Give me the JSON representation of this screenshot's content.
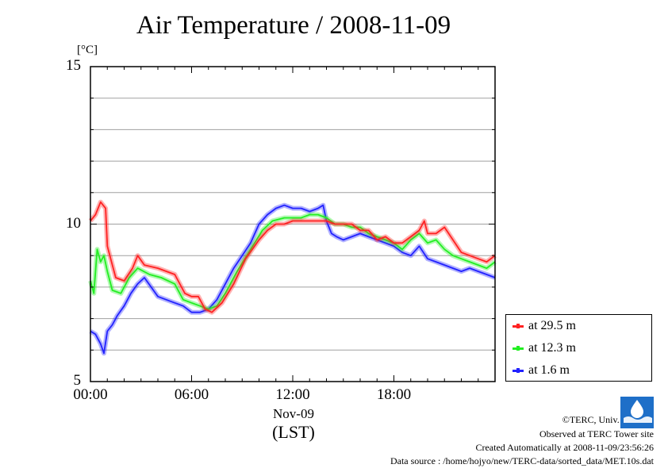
{
  "chart_data": {
    "type": "line",
    "title": "Air Temperature / 2008-11-09",
    "unit": "[°C]",
    "ylim": [
      5,
      15
    ],
    "yticks": [
      "5",
      "10",
      "15"
    ],
    "xlim": [
      0,
      24
    ],
    "xticks": [
      {
        "hour": 0,
        "label": "00:00"
      },
      {
        "hour": 6,
        "label": "06:00"
      },
      {
        "hour": 12,
        "label": "12:00"
      },
      {
        "hour": 18,
        "label": "18:00"
      }
    ],
    "x_date_label": "Nov-09",
    "x_tz_label": "(LST)",
    "grid": "horizontal",
    "legend_position": "bottom-right, outside plot",
    "series": [
      {
        "name": "at 29.5 m",
        "color": "#ff2222",
        "points": [
          [
            0.0,
            10.1
          ],
          [
            0.3,
            10.3
          ],
          [
            0.6,
            10.7
          ],
          [
            0.9,
            10.5
          ],
          [
            1.0,
            9.3
          ],
          [
            1.2,
            8.9
          ],
          [
            1.5,
            8.3
          ],
          [
            2.0,
            8.2
          ],
          [
            2.5,
            8.6
          ],
          [
            2.8,
            9.0
          ],
          [
            3.2,
            8.7
          ],
          [
            4.0,
            8.6
          ],
          [
            5.0,
            8.4
          ],
          [
            5.6,
            7.8
          ],
          [
            6.0,
            7.7
          ],
          [
            6.4,
            7.7
          ],
          [
            6.8,
            7.3
          ],
          [
            7.2,
            7.2
          ],
          [
            7.8,
            7.5
          ],
          [
            8.5,
            8.1
          ],
          [
            9.2,
            8.9
          ],
          [
            10.0,
            9.5
          ],
          [
            10.5,
            9.8
          ],
          [
            11.0,
            10.0
          ],
          [
            11.5,
            10.0
          ],
          [
            12.0,
            10.1
          ],
          [
            12.5,
            10.1
          ],
          [
            13.0,
            10.1
          ],
          [
            13.5,
            10.1
          ],
          [
            14.0,
            10.1
          ],
          [
            14.5,
            10.0
          ],
          [
            15.0,
            10.0
          ],
          [
            15.5,
            10.0
          ],
          [
            16.0,
            9.8
          ],
          [
            16.5,
            9.8
          ],
          [
            17.0,
            9.5
          ],
          [
            17.5,
            9.6
          ],
          [
            18.0,
            9.4
          ],
          [
            18.5,
            9.4
          ],
          [
            19.0,
            9.6
          ],
          [
            19.5,
            9.8
          ],
          [
            19.8,
            10.1
          ],
          [
            20.0,
            9.7
          ],
          [
            20.5,
            9.7
          ],
          [
            21.0,
            9.9
          ],
          [
            21.5,
            9.5
          ],
          [
            22.0,
            9.1
          ],
          [
            22.5,
            9.0
          ],
          [
            23.0,
            8.9
          ],
          [
            23.5,
            8.8
          ],
          [
            24.0,
            9.0
          ]
        ]
      },
      {
        "name": "at 12.3 m",
        "color": "#22ee22",
        "points": [
          [
            0.0,
            8.2
          ],
          [
            0.2,
            7.8
          ],
          [
            0.4,
            9.2
          ],
          [
            0.6,
            8.8
          ],
          [
            0.8,
            9.0
          ],
          [
            1.0,
            8.5
          ],
          [
            1.3,
            7.9
          ],
          [
            1.8,
            7.8
          ],
          [
            2.3,
            8.3
          ],
          [
            2.8,
            8.6
          ],
          [
            3.5,
            8.4
          ],
          [
            4.2,
            8.3
          ],
          [
            5.0,
            8.1
          ],
          [
            5.5,
            7.6
          ],
          [
            6.0,
            7.5
          ],
          [
            6.5,
            7.4
          ],
          [
            7.0,
            7.3
          ],
          [
            7.5,
            7.4
          ],
          [
            8.0,
            7.8
          ],
          [
            8.7,
            8.5
          ],
          [
            9.5,
            9.2
          ],
          [
            10.2,
            9.8
          ],
          [
            10.8,
            10.1
          ],
          [
            11.5,
            10.2
          ],
          [
            12.0,
            10.2
          ],
          [
            12.5,
            10.2
          ],
          [
            13.0,
            10.3
          ],
          [
            13.5,
            10.3
          ],
          [
            14.0,
            10.2
          ],
          [
            14.5,
            10.0
          ],
          [
            15.0,
            10.0
          ],
          [
            15.5,
            9.9
          ],
          [
            16.0,
            9.9
          ],
          [
            16.5,
            9.7
          ],
          [
            17.0,
            9.6
          ],
          [
            17.5,
            9.5
          ],
          [
            18.0,
            9.4
          ],
          [
            18.5,
            9.2
          ],
          [
            19.0,
            9.5
          ],
          [
            19.5,
            9.7
          ],
          [
            20.0,
            9.4
          ],
          [
            20.5,
            9.5
          ],
          [
            21.0,
            9.2
          ],
          [
            21.5,
            9.0
          ],
          [
            22.0,
            8.9
          ],
          [
            22.5,
            8.8
          ],
          [
            23.0,
            8.7
          ],
          [
            23.5,
            8.6
          ],
          [
            24.0,
            8.8
          ]
        ]
      },
      {
        "name": "at 1.6 m",
        "color": "#2222ff",
        "points": [
          [
            0.0,
            6.6
          ],
          [
            0.3,
            6.5
          ],
          [
            0.6,
            6.2
          ],
          [
            0.8,
            5.9
          ],
          [
            1.0,
            6.6
          ],
          [
            1.3,
            6.8
          ],
          [
            1.6,
            7.1
          ],
          [
            2.0,
            7.4
          ],
          [
            2.4,
            7.8
          ],
          [
            2.8,
            8.1
          ],
          [
            3.2,
            8.3
          ],
          [
            3.6,
            8.0
          ],
          [
            4.0,
            7.7
          ],
          [
            4.5,
            7.6
          ],
          [
            5.0,
            7.5
          ],
          [
            5.5,
            7.4
          ],
          [
            6.0,
            7.2
          ],
          [
            6.5,
            7.2
          ],
          [
            7.0,
            7.3
          ],
          [
            7.5,
            7.6
          ],
          [
            8.0,
            8.1
          ],
          [
            8.5,
            8.6
          ],
          [
            9.0,
            9.0
          ],
          [
            9.5,
            9.4
          ],
          [
            10.0,
            10.0
          ],
          [
            10.5,
            10.3
          ],
          [
            11.0,
            10.5
          ],
          [
            11.5,
            10.6
          ],
          [
            12.0,
            10.5
          ],
          [
            12.5,
            10.5
          ],
          [
            13.0,
            10.4
          ],
          [
            13.5,
            10.5
          ],
          [
            13.8,
            10.6
          ],
          [
            14.0,
            10.1
          ],
          [
            14.3,
            9.7
          ],
          [
            14.6,
            9.6
          ],
          [
            15.0,
            9.5
          ],
          [
            15.5,
            9.6
          ],
          [
            16.0,
            9.7
          ],
          [
            16.5,
            9.6
          ],
          [
            17.0,
            9.5
          ],
          [
            17.5,
            9.4
          ],
          [
            18.0,
            9.3
          ],
          [
            18.5,
            9.1
          ],
          [
            19.0,
            9.0
          ],
          [
            19.5,
            9.3
          ],
          [
            20.0,
            8.9
          ],
          [
            20.5,
            8.8
          ],
          [
            21.0,
            8.7
          ],
          [
            21.5,
            8.6
          ],
          [
            22.0,
            8.5
          ],
          [
            22.5,
            8.6
          ],
          [
            23.0,
            8.5
          ],
          [
            23.5,
            8.4
          ],
          [
            24.0,
            8.3
          ]
        ]
      }
    ]
  },
  "credits": {
    "copyright": "©TERC, Univ. Tsukuba",
    "observed": "Observed at TERC Tower site",
    "created": "Created Automatically at 2008-11-09/23:56:26",
    "source": "Data source : /home/hojyo/new/TERC-data/sorted_data/MET.10s.dat",
    "logo_text": "TERC"
  }
}
